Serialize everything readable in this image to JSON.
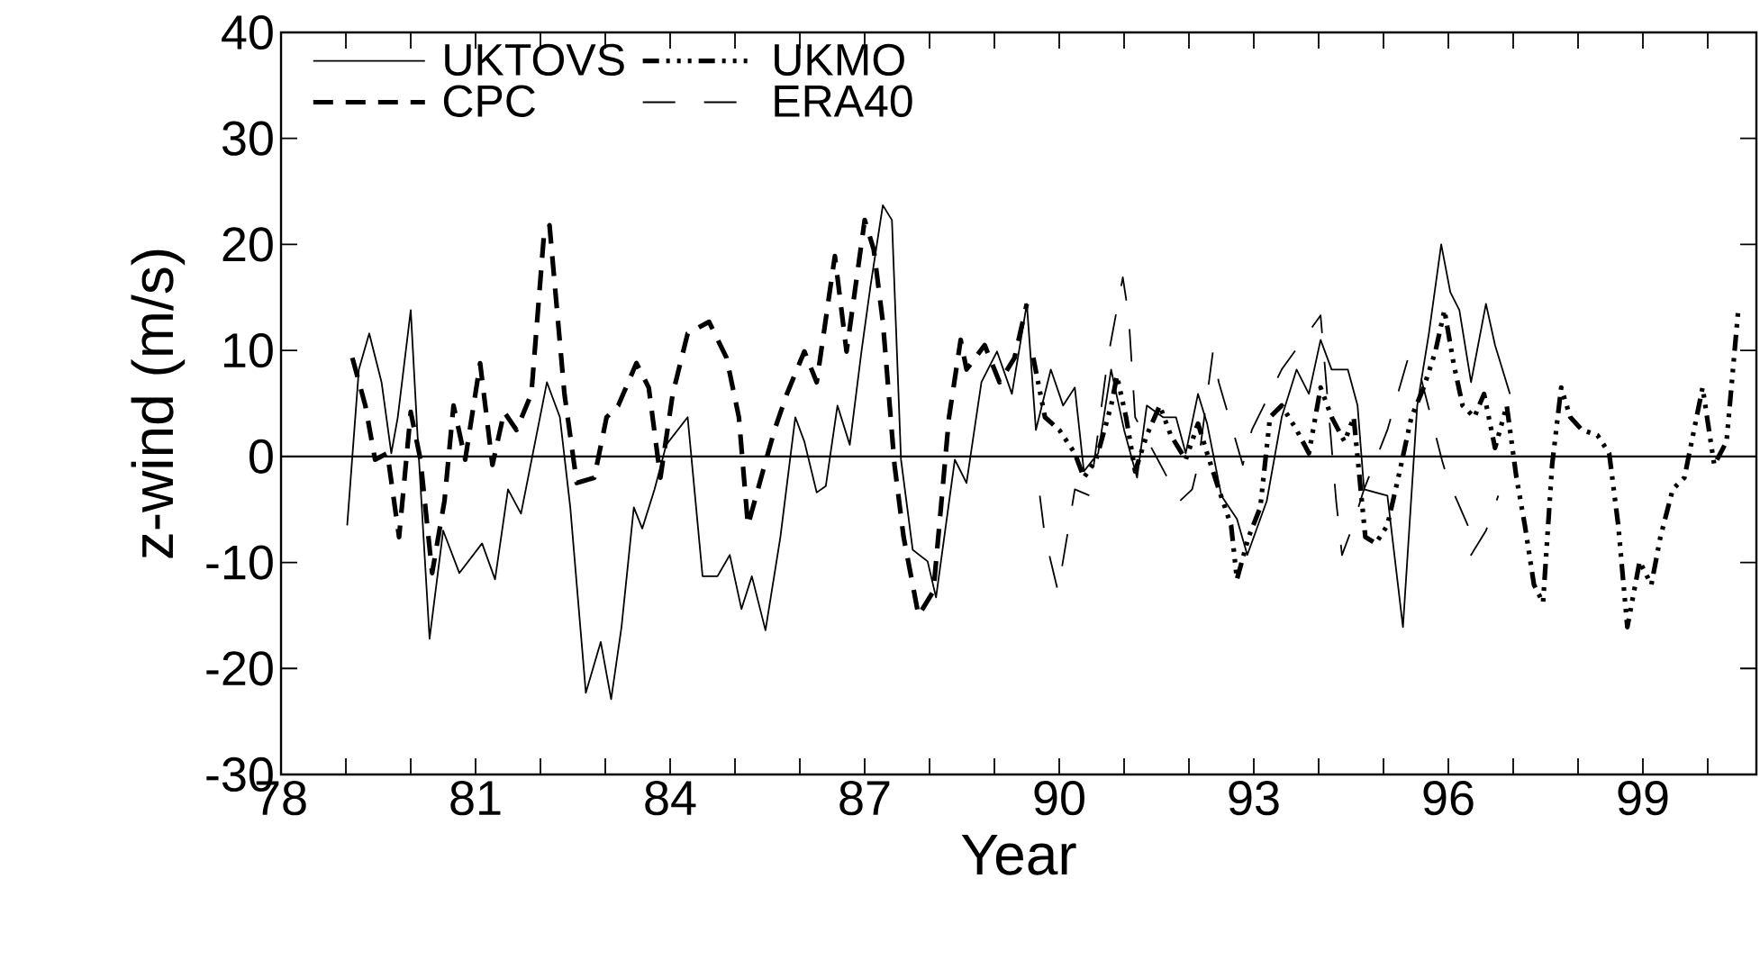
{
  "chart_data": {
    "type": "line",
    "xlabel": "Year",
    "ylabel": "z-wind (m/s)",
    "xlim": [
      78,
      100.75
    ],
    "ylim": [
      -30,
      40
    ],
    "xticks": [
      78,
      {
        "value": 79,
        "label": null
      },
      {
        "value": 80,
        "label": null
      },
      81,
      {
        "value": 82,
        "label": null
      },
      {
        "value": 83,
        "label": null
      },
      84,
      {
        "value": 85,
        "label": null
      },
      {
        "value": 86,
        "label": null
      },
      87,
      {
        "value": 88,
        "label": null
      },
      {
        "value": 89,
        "label": null
      },
      90,
      {
        "value": 91,
        "label": null
      },
      {
        "value": 92,
        "label": null
      },
      93,
      {
        "value": 94,
        "label": null
      },
      {
        "value": 95,
        "label": null
      },
      96,
      {
        "value": 97,
        "label": null
      },
      {
        "value": 98,
        "label": null
      },
      99,
      {
        "value": 100,
        "label": null
      }
    ],
    "yticks": [
      -30,
      -20,
      -10,
      0,
      10,
      20,
      30,
      40
    ],
    "legend": "top left",
    "marker": "none",
    "grid": false,
    "ref_lines": [
      {
        "axis": "y",
        "value": 0
      }
    ],
    "series": [
      {
        "name": "UKTOVS",
        "color": "#000000",
        "line_style": "solid",
        "x": [
          79.02,
          79.2,
          79.36,
          79.55,
          79.7,
          79.8,
          80.0,
          80.1,
          80.29,
          80.5,
          80.75,
          81.1,
          81.3,
          81.5,
          81.7,
          82.1,
          82.3,
          82.46,
          82.7,
          82.93,
          83.09,
          83.25,
          83.44,
          83.57,
          83.76,
          83.94,
          84.27,
          84.5,
          84.73,
          84.92,
          85.1,
          85.26,
          85.47,
          85.7,
          85.93,
          86.07,
          86.26,
          86.4,
          86.58,
          86.77,
          86.95,
          87.09,
          87.28,
          87.42,
          87.56,
          87.74,
          87.97,
          88.1,
          88.39,
          88.57,
          88.8,
          89.04,
          89.27,
          89.5,
          89.64,
          89.87,
          90.06,
          90.24,
          90.38,
          90.6,
          90.8,
          91.0,
          91.2,
          91.35,
          91.6,
          91.8,
          91.95,
          92.14,
          92.28,
          92.5,
          92.74,
          92.9,
          93.2,
          93.43,
          93.66,
          93.85,
          94.03,
          94.2,
          94.45,
          94.6,
          94.7,
          95.06,
          95.3,
          95.52,
          95.7,
          95.89,
          96.03,
          96.17,
          96.35,
          96.58,
          96.72,
          96.95
        ],
        "values": [
          -6.5,
          8.2,
          11.6,
          7,
          0.3,
          3.7,
          13.8,
          2.5,
          -17.2,
          -7,
          -11,
          -8.2,
          -11.6,
          -3.1,
          -5.4,
          7,
          3.7,
          -4.8,
          -22.3,
          -17.5,
          -22.9,
          -16.1,
          -4.8,
          -6.8,
          -3.1,
          1.1,
          3.7,
          -11.3,
          -11.3,
          -9.3,
          -14.4,
          -11.3,
          -16.4,
          -7.6,
          3.7,
          1.4,
          -3.4,
          -2.8,
          4.8,
          1.1,
          9.9,
          16.1,
          23.7,
          22.3,
          -0.3,
          -8.8,
          -9.9,
          -13.3,
          -0.3,
          -2.5,
          7,
          9.9,
          5.9,
          14.4,
          2.5,
          8.2,
          4.8,
          6.5,
          -1.4,
          0.3,
          8.2,
          2.5,
          -2,
          4.8,
          3.7,
          3.7,
          0.3,
          5.9,
          3.1,
          -3.7,
          -5.9,
          -9.3,
          -4.2,
          3.7,
          8.2,
          5.9,
          11,
          8.2,
          8.2,
          4.8,
          -3.1,
          -3.7,
          -16.1,
          4.8,
          11.6,
          20,
          15.5,
          13.8,
          7,
          14.4,
          10.5,
          5.9
        ]
      },
      {
        "name": "UKMO",
        "color": "#000000",
        "line_style": "dashdotted",
        "x": [
          89.6,
          89.78,
          90.0,
          90.24,
          90.38,
          90.57,
          90.8,
          90.89,
          91.03,
          91.17,
          91.35,
          91.55,
          91.72,
          91.95,
          92.14,
          92.28,
          92.46,
          92.65,
          92.74,
          92.92,
          93.1,
          93.25,
          93.43,
          93.66,
          93.85,
          94.03,
          94.2,
          94.4,
          94.54,
          94.72,
          94.88,
          95.06,
          95.25,
          95.43,
          95.62,
          95.8,
          95.94,
          96.08,
          96.22,
          96.4,
          96.55,
          96.72,
          96.9,
          97.05,
          97.18,
          97.32,
          97.46,
          97.6,
          97.74,
          97.88,
          98.06,
          98.3,
          98.48,
          98.62,
          98.76,
          98.95,
          99.13,
          99.27,
          99.46,
          99.64,
          99.92,
          100.1,
          100.29,
          100.47
        ],
        "values": [
          9.3,
          3.7,
          2.5,
          0.3,
          -2,
          -0.3,
          4.8,
          7.6,
          3.7,
          -1.4,
          2,
          4.8,
          2,
          -0.3,
          3.1,
          0.3,
          -3.1,
          -6.5,
          -11.6,
          -7.6,
          -4.8,
          3.7,
          4.8,
          2.5,
          0.3,
          6.5,
          3.7,
          1.4,
          3.7,
          -7.6,
          -8.2,
          -6.5,
          -1.4,
          3.7,
          6.5,
          9.9,
          13.8,
          8.8,
          4.8,
          3.7,
          5.9,
          0.8,
          4.8,
          -2,
          -6.5,
          -12.1,
          -13.8,
          -0.8,
          6.5,
          3.7,
          2.5,
          2,
          0.3,
          -6.5,
          -16.1,
          -9.9,
          -12.1,
          -7.6,
          -3.1,
          -2,
          6.5,
          -0.8,
          1.4,
          13.8
        ]
      },
      {
        "name": "CPC",
        "color": "#000000",
        "line_style": "dashed",
        "x": [
          79.1,
          79.3,
          79.45,
          79.64,
          79.82,
          80.0,
          80.15,
          80.33,
          80.52,
          80.66,
          80.84,
          81.07,
          81.26,
          81.44,
          81.63,
          81.86,
          82.05,
          82.14,
          82.37,
          82.56,
          82.83,
          83.02,
          83.2,
          83.48,
          83.67,
          83.85,
          84.04,
          84.27,
          84.6,
          84.87,
          85.06,
          85.2,
          85.43,
          85.61,
          85.8,
          86.07,
          86.26,
          86.54,
          86.72,
          87.0,
          87.14,
          87.28,
          87.46,
          87.6,
          87.83,
          88.06,
          88.3,
          88.48,
          88.57,
          88.85,
          89.08,
          89.31,
          89.5
        ],
        "values": [
          9.3,
          4.8,
          -0.3,
          0.3,
          -7.6,
          4.2,
          -0.3,
          -11,
          -4.2,
          4.8,
          -0.3,
          8.8,
          -0.8,
          4.2,
          2.5,
          5.9,
          20.6,
          21.8,
          5.9,
          -2.5,
          -2,
          3.7,
          4.8,
          8.8,
          6.5,
          -2,
          5.9,
          11.6,
          12.7,
          9.3,
          3.7,
          -6.5,
          -1.4,
          2.5,
          5.9,
          9.9,
          7,
          18.9,
          9.9,
          22.3,
          19.5,
          12.7,
          -0.8,
          -7.6,
          -15,
          -12.7,
          3.7,
          11,
          8.2,
          10.5,
          7,
          9.3,
          14.4
        ]
      },
      {
        "name": "ERA40",
        "color": "#000000",
        "line_style": "loosely dashed",
        "x": [
          89.7,
          89.78,
          89.98,
          90.15,
          90.24,
          90.47,
          90.75,
          90.98,
          91.07,
          91.17,
          91.86,
          92.05,
          92.14,
          92.37,
          92.46,
          92.83,
          92.97,
          93.43,
          94.03,
          94.27,
          94.36,
          94.5,
          94.7,
          95.06,
          95.38,
          95.52,
          95.9,
          95.98,
          96.3,
          96.35,
          96.58,
          96.77
        ],
        "values": [
          -3.7,
          -7.6,
          -12.7,
          -6.5,
          -3.1,
          -3.7,
          9.3,
          16.9,
          13.3,
          3.7,
          -4.2,
          -3.1,
          -0.8,
          9.9,
          7,
          -0.8,
          2.5,
          8.2,
          13.3,
          -4.2,
          -9.3,
          -7,
          -3.1,
          2.5,
          9.3,
          8.8,
          -0.3,
          -2,
          -6.5,
          -9.3,
          -7,
          -3.7
        ]
      }
    ]
  }
}
